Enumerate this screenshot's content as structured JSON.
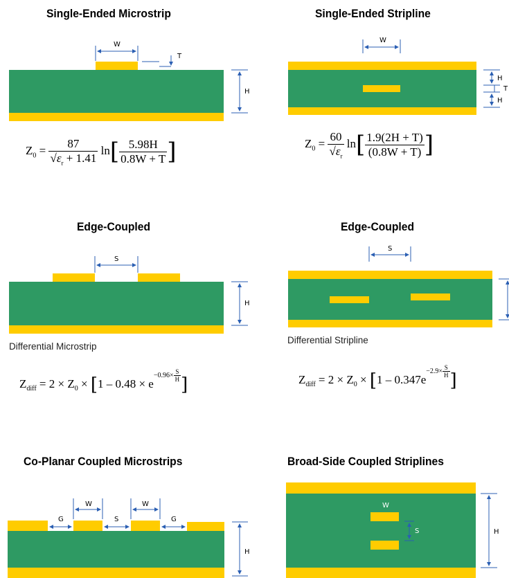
{
  "colors": {
    "dielectric": "#2e9a63",
    "copper": "#ffcc00",
    "dim": "#2b5fb3"
  },
  "panels": {
    "microstrip": {
      "title": "Single-Ended Microstrip",
      "label_w": "W",
      "label_t": "T",
      "label_h": "H",
      "eq": {
        "z": "Z",
        "zsub": "0",
        "num": "87",
        "den_a": "ε",
        "den_sub": "r",
        "den_b": " + 1.41",
        "ln": "ln",
        "in_num": "5.98H",
        "in_den": "0.8W + T"
      }
    },
    "stripline": {
      "title": "Single-Ended Stripline",
      "label_w": "W",
      "label_h1": "H",
      "label_t": "T",
      "label_h2": "H",
      "eq": {
        "z": "Z",
        "zsub": "0",
        "num": "60",
        "den_a": "ε",
        "den_sub": "r",
        "ln": "ln",
        "in_num": "1.9(2H + T)",
        "in_den": "(0.8W + T)"
      }
    },
    "edge_micro": {
      "title": "Edge-Coupled",
      "label_s": "S",
      "label_h": "H",
      "subtitle": "Differential Microstrip",
      "eq": {
        "z": "Z",
        "zsub": "diff",
        "body": " = 2 × Z",
        "body_sub": "0",
        "body2": " × ",
        "inner": "1 – 0.48 × e",
        "exp": "−0.96×",
        "exp_num": "S",
        "exp_den": "H"
      }
    },
    "edge_strip": {
      "title": "Edge-Coupled",
      "label_s": "S",
      "subtitle": "Differential Stripline",
      "eq": {
        "z": "Z",
        "zsub": "diff",
        "body": " = 2 × Z",
        "body_sub": "0",
        "body2": " × ",
        "inner": "1 – 0.347e",
        "exp": "−2.9×",
        "exp_num": "S",
        "exp_den": "H"
      }
    },
    "coplanar": {
      "title": "Co-Planar Coupled Microstrips",
      "label_w1": "W",
      "label_w2": "W",
      "label_g1": "G",
      "label_s": "S",
      "label_g2": "G",
      "label_h": "H"
    },
    "broadside": {
      "title": "Broad-Side Coupled Striplines",
      "label_w": "W",
      "label_s": "S",
      "label_h": "H"
    }
  }
}
